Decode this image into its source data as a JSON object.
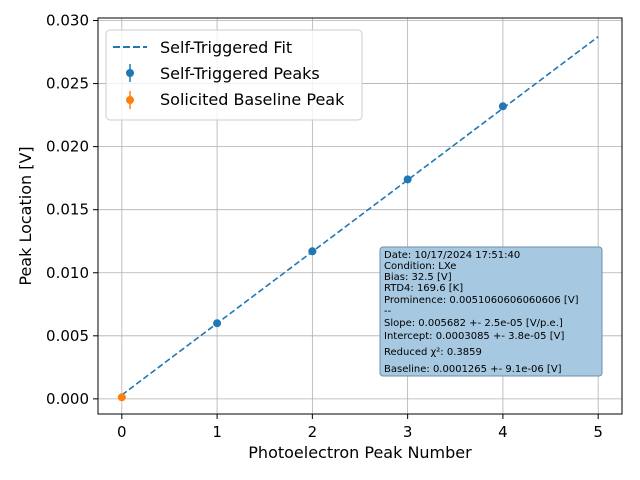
{
  "chart_data": {
    "type": "scatter",
    "xlabel": "Photoelectron Peak Number",
    "ylabel": "Peak Location [V]",
    "xlim": [
      -0.25,
      5.25
    ],
    "ylim": [
      -0.0012,
      0.0302
    ],
    "x_ticks": [
      "0",
      "1",
      "2",
      "3",
      "4",
      "5"
    ],
    "y_ticks": [
      "0.000",
      "0.005",
      "0.010",
      "0.015",
      "0.020",
      "0.025",
      "0.030"
    ],
    "grid": true,
    "legend_position": "top-left",
    "series": [
      {
        "name": "Self-Triggered Fit",
        "kind": "line",
        "style": "dashed",
        "color": "#1f77b4",
        "x": [
          0,
          5
        ],
        "y": [
          0.0003085,
          0.0287185
        ]
      },
      {
        "name": "Self-Triggered Peaks",
        "kind": "points",
        "color": "#1f77b4",
        "x": [
          1,
          2,
          3,
          4
        ],
        "y": [
          0.006,
          0.0117,
          0.0174,
          0.0232
        ]
      },
      {
        "name": "Solicited Baseline Peak",
        "kind": "points",
        "color": "#ff7f0e",
        "x": [
          0
        ],
        "y": [
          0.0001265
        ]
      }
    ],
    "annotation": {
      "lines": [
        "Date: 10/17/2024 17:51:40",
        "Condition: LXe",
        "Bias: 32.5 [V]",
        "RTD4: 169.6 [K]",
        "Prominence: 0.0051060606060606 [V]",
        "--",
        "Slope: 0.005682 +- 2.5e-05 [V/p.e.]",
        "Intercept: 0.0003085 +- 3.8e-05 [V]",
        "Reduced χ²: 0.3859",
        "Baseline: 0.0001265 +- 9.1e-06 [V]"
      ],
      "background": "#a6c8e0",
      "border": "#6e8fa8"
    }
  }
}
